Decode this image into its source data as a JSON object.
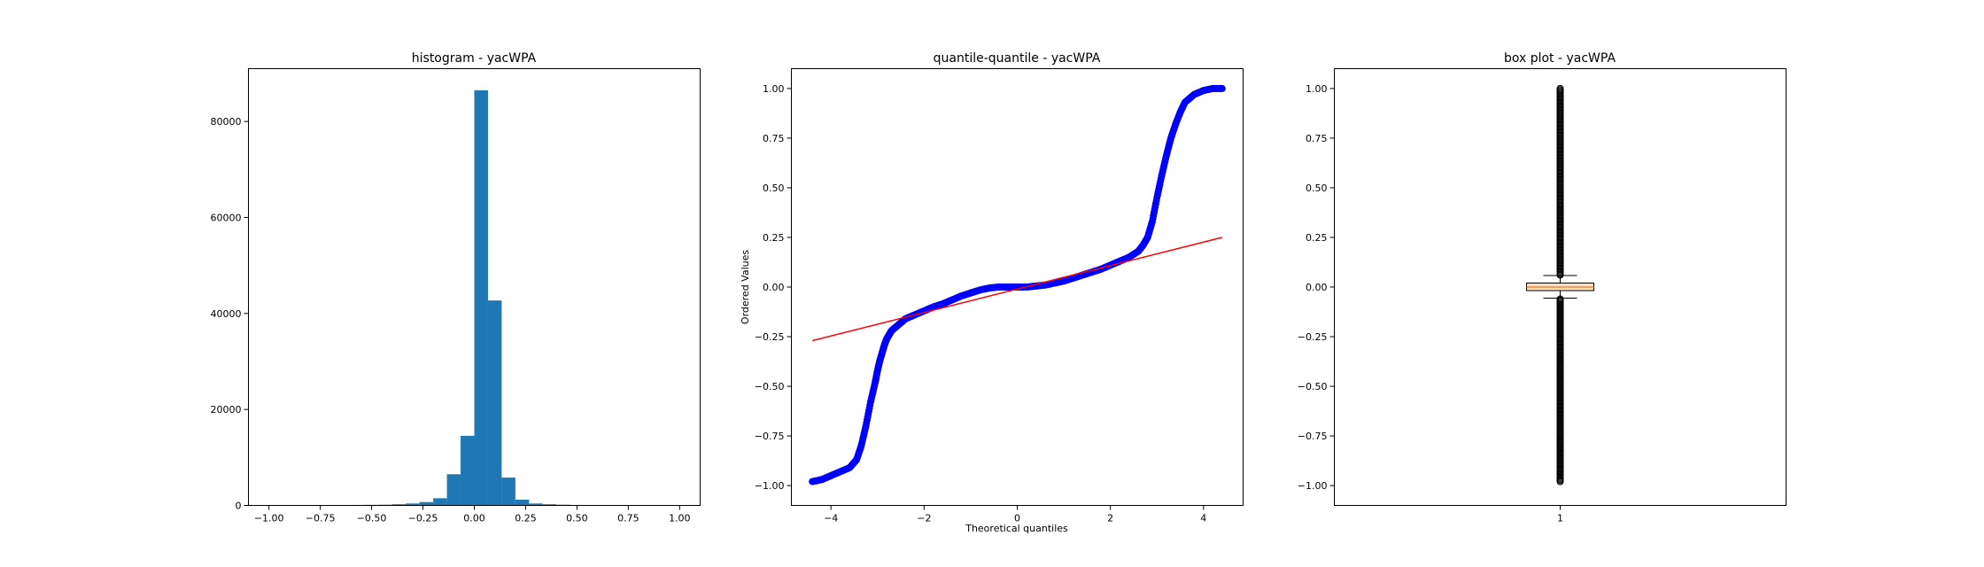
{
  "chart_data": [
    {
      "type": "bar",
      "title": "histogram - yacWPA",
      "xlabel": "",
      "ylabel": "",
      "xlim": [
        -1.1,
        1.1
      ],
      "ylim": [
        0,
        91000
      ],
      "xticks": [
        -1.0,
        -0.75,
        -0.5,
        -0.25,
        0.0,
        0.25,
        0.5,
        0.75,
        1.0
      ],
      "xtick_labels": [
        "−1.00",
        "−0.75",
        "−0.50",
        "−0.25",
        "0.00",
        "0.25",
        "0.50",
        "0.75",
        "1.00"
      ],
      "yticks": [
        0,
        20000,
        40000,
        60000,
        80000
      ],
      "ytick_labels": [
        "0",
        "20000",
        "40000",
        "60000",
        "80000"
      ],
      "bin_edges": [
        -1.0,
        -0.9333,
        -0.8667,
        -0.8,
        -0.7333,
        -0.6667,
        -0.6,
        -0.5333,
        -0.4667,
        -0.4,
        -0.3333,
        -0.2667,
        -0.2,
        -0.1333,
        -0.0667,
        0.0,
        0.0667,
        0.1333,
        0.2,
        0.2667,
        0.3333,
        0.4,
        0.4667,
        0.5333,
        0.6,
        0.6667,
        0.7333,
        0.8,
        0.8667,
        0.9333,
        1.0
      ],
      "values": [
        80,
        60,
        60,
        70,
        70,
        90,
        100,
        120,
        150,
        250,
        400,
        700,
        1500,
        6500,
        14500,
        86500,
        42700,
        5800,
        1200,
        400,
        250,
        150,
        100,
        80,
        70,
        60,
        50,
        40,
        30,
        30
      ],
      "color": "#1f77b4",
      "grid": false
    },
    {
      "type": "scatter",
      "title": "quantile-quantile - yacWPA",
      "xlabel": "Theoretical quantiles",
      "ylabel": "Ordered Values",
      "xlim": [
        -4.85,
        4.85
      ],
      "ylim": [
        -1.1,
        1.1
      ],
      "xticks": [
        -4,
        -2,
        0,
        2,
        4
      ],
      "xtick_labels": [
        "−4",
        "−2",
        "0",
        "2",
        "4"
      ],
      "yticks": [
        -1.0,
        -0.75,
        -0.5,
        -0.25,
        0.0,
        0.25,
        0.5,
        0.75,
        1.0
      ],
      "ytick_labels": [
        "−1.00",
        "−0.75",
        "−0.50",
        "−0.25",
        "0.00",
        "0.25",
        "0.50",
        "0.75",
        "1.00"
      ],
      "series": [
        {
          "kind": "points",
          "color": "#0000ff",
          "x": [
            -4.4,
            -4.2,
            -4.0,
            -3.8,
            -3.6,
            -3.45,
            -3.35,
            -3.25,
            -3.15,
            -3.05,
            -3.0,
            -2.95,
            -2.9,
            -2.85,
            -2.8,
            -2.75,
            -2.7,
            -2.6,
            -2.5,
            -2.4,
            -2.2,
            -2.0,
            -1.8,
            -1.6,
            -1.4,
            -1.2,
            -1.0,
            -0.8,
            -0.6,
            -0.4,
            -0.2,
            0.0,
            0.2,
            0.4,
            0.6,
            0.8,
            1.0,
            1.2,
            1.4,
            1.6,
            1.8,
            2.0,
            2.2,
            2.4,
            2.6,
            2.7,
            2.8,
            2.9,
            3.0,
            3.1,
            3.2,
            3.3,
            3.4,
            3.5,
            3.6,
            3.8,
            4.0,
            4.2,
            4.4
          ],
          "y": [
            -0.98,
            -0.97,
            -0.95,
            -0.93,
            -0.91,
            -0.87,
            -0.8,
            -0.7,
            -0.58,
            -0.48,
            -0.42,
            -0.37,
            -0.33,
            -0.29,
            -0.26,
            -0.24,
            -0.22,
            -0.2,
            -0.18,
            -0.16,
            -0.14,
            -0.12,
            -0.1,
            -0.085,
            -0.065,
            -0.045,
            -0.03,
            -0.015,
            -0.005,
            0.0,
            0.0,
            0.0,
            0.0,
            0.005,
            0.01,
            0.02,
            0.03,
            0.045,
            0.06,
            0.075,
            0.09,
            0.11,
            0.13,
            0.15,
            0.18,
            0.21,
            0.25,
            0.33,
            0.45,
            0.56,
            0.66,
            0.75,
            0.82,
            0.88,
            0.93,
            0.97,
            0.99,
            1.0,
            1.0
          ]
        },
        {
          "kind": "line",
          "color": "#ff0000",
          "x": [
            -4.4,
            4.4
          ],
          "y": [
            -0.27,
            0.25
          ]
        }
      ],
      "grid": false
    },
    {
      "type": "box",
      "title": "box plot - yacWPA",
      "xlabel": "",
      "ylabel": "",
      "xlim": [
        0.5,
        1.5
      ],
      "ylim": [
        -1.1,
        1.1
      ],
      "xticks": [
        1
      ],
      "xtick_labels": [
        "1"
      ],
      "yticks": [
        -1.0,
        -0.75,
        -0.5,
        -0.25,
        0.0,
        0.25,
        0.5,
        0.75,
        1.0
      ],
      "ytick_labels": [
        "−1.00",
        "−0.75",
        "−0.50",
        "−0.25",
        "0.00",
        "0.25",
        "0.50",
        "0.75",
        "1.00"
      ],
      "box": {
        "q1": -0.018,
        "median": 0.0,
        "q3": 0.02,
        "whisker_low": -0.056,
        "whisker_high": 0.058
      },
      "fliers_range_high": [
        0.06,
        1.0
      ],
      "fliers_range_low": [
        -0.98,
        -0.06
      ],
      "box_color": "#fbe1c8",
      "grid": false
    }
  ]
}
